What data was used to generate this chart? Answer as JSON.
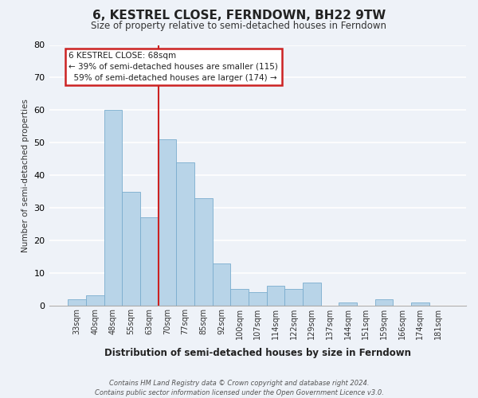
{
  "title": "6, KESTREL CLOSE, FERNDOWN, BH22 9TW",
  "subtitle": "Size of property relative to semi-detached houses in Ferndown",
  "xlabel": "Distribution of semi-detached houses by size in Ferndown",
  "ylabel": "Number of semi-detached properties",
  "categories": [
    "33sqm",
    "40sqm",
    "48sqm",
    "55sqm",
    "63sqm",
    "70sqm",
    "77sqm",
    "85sqm",
    "92sqm",
    "100sqm",
    "107sqm",
    "114sqm",
    "122sqm",
    "129sqm",
    "137sqm",
    "144sqm",
    "151sqm",
    "159sqm",
    "166sqm",
    "174sqm",
    "181sqm"
  ],
  "values": [
    2,
    3,
    60,
    35,
    27,
    51,
    44,
    33,
    13,
    5,
    4,
    6,
    5,
    7,
    0,
    1,
    0,
    2,
    0,
    1,
    0
  ],
  "bar_color": "#b8d4e8",
  "bar_edge_color": "#7aadce",
  "property_sqm": "68sqm",
  "pct_smaller": 39,
  "count_smaller": 115,
  "pct_larger": 59,
  "count_larger": 174,
  "ylim": [
    0,
    80
  ],
  "yticks": [
    0,
    10,
    20,
    30,
    40,
    50,
    60,
    70,
    80
  ],
  "bg_color": "#eef2f8",
  "grid_color": "#ffffff",
  "red_line_color": "#cc2222",
  "annotation_box_edge": "#cc2222",
  "footer_line1": "Contains HM Land Registry data © Crown copyright and database right 2024.",
  "footer_line2": "Contains public sector information licensed under the Open Government Licence v3.0."
}
